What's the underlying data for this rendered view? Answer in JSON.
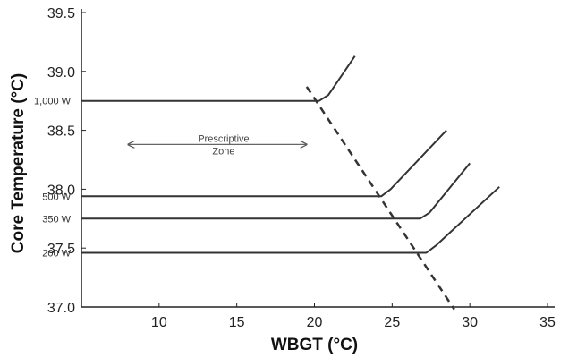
{
  "chart_data": {
    "type": "line",
    "title": "",
    "xlabel": "WBGT (°C)",
    "ylabel": "Core Temperature (°C)",
    "xlim": [
      5,
      35
    ],
    "ylim": [
      37.0,
      39.5
    ],
    "x_ticks": [
      "10",
      "15",
      "20",
      "25",
      "30",
      "35"
    ],
    "y_ticks": [
      "37.0",
      "37.5",
      "38.0",
      "38.5",
      "39.0",
      "39.5"
    ],
    "grid": false,
    "series": [
      {
        "name": "1,000 W",
        "x": [
          5.0,
          20.3,
          20.9,
          22.6
        ],
        "y": [
          38.75,
          38.75,
          38.8,
          39.13
        ]
      },
      {
        "name": "500 W",
        "x": [
          5.0,
          24.3,
          24.9,
          28.5
        ],
        "y": [
          37.94,
          37.94,
          38.0,
          38.5
        ]
      },
      {
        "name": "350 W",
        "x": [
          5.0,
          26.8,
          27.4,
          30.0
        ],
        "y": [
          37.75,
          37.75,
          37.8,
          38.22
        ]
      },
      {
        "name": "200 W",
        "x": [
          5.0,
          27.2,
          27.8,
          31.9
        ],
        "y": [
          37.46,
          37.46,
          37.52,
          38.02
        ]
      }
    ],
    "boundary": {
      "x": [
        19.5,
        29.0
      ],
      "y": [
        38.87,
        36.98
      ],
      "style": "dashed"
    },
    "annotation": {
      "line1": "Prescriptive",
      "line2": "Zone",
      "x_from": 8.0,
      "x_to": 19.5,
      "y": 38.38,
      "style": "double-arrow"
    }
  }
}
